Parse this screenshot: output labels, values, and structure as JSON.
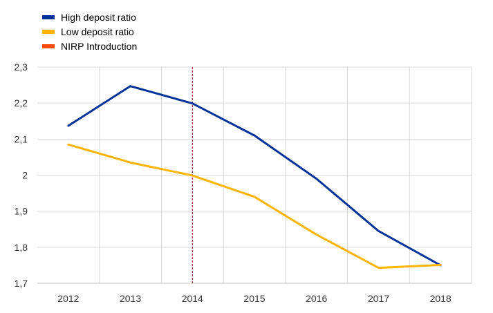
{
  "chart_data": {
    "type": "line",
    "title": "",
    "xlabel": "",
    "ylabel": "",
    "categories": [
      "2012",
      "2013",
      "2014",
      "2015",
      "2016",
      "2017",
      "2018"
    ],
    "ylim": [
      1.7,
      2.3
    ],
    "yticks": [
      1.7,
      1.8,
      1.9,
      2.0,
      2.1,
      2.2,
      2.3
    ],
    "ytick_labels": [
      "1,7",
      "1,8",
      "1,9",
      "2",
      "2,1",
      "2,2",
      "2,3"
    ],
    "grid": true,
    "legend_position": "top-left",
    "series": [
      {
        "name": "High deposit ratio",
        "color": "#003399",
        "values": [
          2.137,
          2.247,
          2.199,
          2.11,
          1.99,
          1.845,
          1.75
        ]
      },
      {
        "name": "Low deposit ratio",
        "color": "#FFB400",
        "values": [
          2.085,
          2.035,
          1.999,
          1.94,
          1.835,
          1.743,
          1.751
        ]
      }
    ],
    "annotations": [
      {
        "name": "NIRP Introduction",
        "type": "vertical-line",
        "x": "2014",
        "legend_color": "#FF4B00",
        "line_color": "#8B0000"
      }
    ]
  }
}
